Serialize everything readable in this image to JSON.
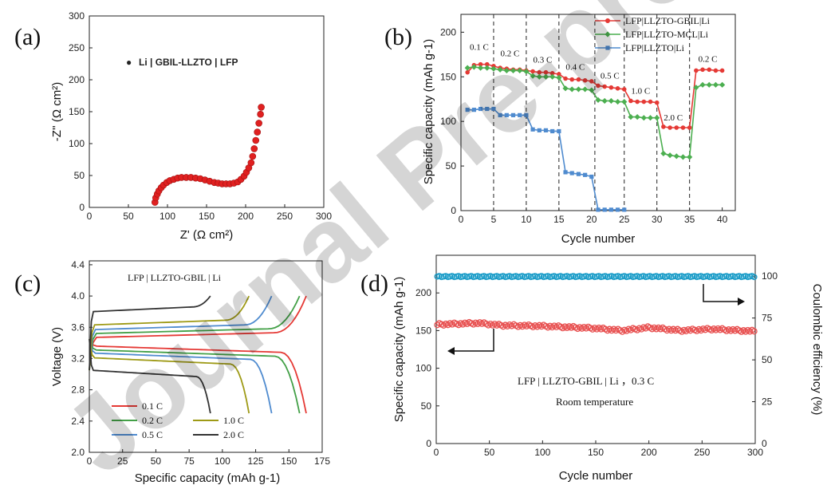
{
  "labels": {
    "a": "(a)",
    "b": "(b)",
    "c": "(c)",
    "d": "(d)"
  },
  "watermark": "Journal Pre-proof",
  "chart_data": [
    {
      "id": "a",
      "type": "scatter",
      "xlabel": "Z' (Ω cm²)",
      "ylabel": "-Z'' (Ω cm²)",
      "xlim": [
        0,
        300
      ],
      "ylim": [
        0,
        300
      ],
      "xticks": [
        "0",
        "50",
        "100",
        "150",
        "200",
        "250",
        "300"
      ],
      "yticks": [
        "0",
        "50",
        "100",
        "150",
        "200",
        "250",
        "300"
      ],
      "legend": "Li | GBIL-LLZTO | LFP",
      "color": "#e02020",
      "x": [
        84,
        85,
        87,
        89,
        92,
        95,
        99,
        103,
        108,
        113,
        118,
        124,
        130,
        136,
        142,
        148,
        154,
        160,
        165,
        170,
        175,
        180,
        185,
        190,
        194,
        198,
        201,
        204,
        207,
        209,
        211,
        213,
        215,
        217,
        219,
        220
      ],
      "y": [
        8,
        15,
        21,
        26,
        31,
        35,
        39,
        42,
        44,
        46,
        47,
        47,
        47,
        46,
        45,
        43,
        41,
        39,
        38,
        37,
        37,
        37,
        38,
        40,
        44,
        49,
        55,
        62,
        70,
        80,
        92,
        105,
        118,
        132,
        146,
        157
      ]
    },
    {
      "id": "b",
      "type": "line",
      "xlabel": "Cycle number",
      "ylabel": "Specific capacity (mAh g-1)",
      "xlim": [
        0,
        42
      ],
      "ylim": [
        0,
        220
      ],
      "xticks": [
        "0",
        "5",
        "10",
        "15",
        "20",
        "25",
        "30",
        "35",
        "40"
      ],
      "yticks": [
        "0",
        "50",
        "100",
        "150",
        "200"
      ],
      "dividers": [
        5,
        10,
        15,
        20.5,
        25,
        30,
        35
      ],
      "rate_labels": [
        {
          "x": 2.8,
          "y": 180,
          "text": "0.1 C"
        },
        {
          "x": 7.5,
          "y": 173,
          "text": "0.2 C"
        },
        {
          "x": 12.5,
          "y": 166,
          "text": "0.3 C"
        },
        {
          "x": 17.5,
          "y": 158,
          "text": "0.4 C"
        },
        {
          "x": 22.8,
          "y": 148,
          "text": "0.5 C"
        },
        {
          "x": 27.5,
          "y": 131,
          "text": "1.0 C"
        },
        {
          "x": 32.5,
          "y": 101,
          "text": "2.0 C"
        },
        {
          "x": 37.8,
          "y": 167,
          "text": "0.2 C"
        }
      ],
      "x": [
        1,
        2,
        3,
        4,
        5,
        6,
        7,
        8,
        9,
        10,
        11,
        12,
        13,
        14,
        15,
        16,
        17,
        18,
        19,
        20,
        21,
        22,
        23,
        24,
        25,
        26,
        27,
        28,
        29,
        30,
        31,
        32,
        33,
        34,
        35,
        36,
        37,
        38,
        39,
        40
      ],
      "series": [
        {
          "name": "LFP|LLZTO-GBIL|Li",
          "color": "#e53935",
          "values": [
            155,
            163,
            164,
            164,
            162,
            160,
            159,
            158,
            158,
            157,
            156,
            155,
            155,
            154,
            153,
            148,
            147,
            147,
            146,
            145,
            140,
            139,
            138,
            137,
            136,
            123,
            122,
            122,
            122,
            121,
            94,
            93,
            93,
            93,
            93,
            157,
            158,
            158,
            157,
            157
          ]
        },
        {
          "name": "LFP|LLZTO-MCL|Li",
          "color": "#4caf50",
          "values": [
            160,
            161,
            160,
            160,
            159,
            158,
            157,
            157,
            157,
            156,
            151,
            150,
            150,
            150,
            149,
            137,
            136,
            136,
            136,
            135,
            124,
            123,
            123,
            122,
            122,
            105,
            105,
            104,
            104,
            104,
            64,
            62,
            61,
            60,
            60,
            138,
            141,
            141,
            141,
            141
          ]
        },
        {
          "name": "LFP|LLZTO|Li",
          "color": "#4f8bcf",
          "values": [
            113,
            113,
            114,
            114,
            114,
            107,
            107,
            107,
            107,
            107,
            91,
            90,
            90,
            89,
            89,
            43,
            42,
            41,
            40,
            38,
            1,
            1,
            1,
            1,
            1,
            null,
            null,
            null,
            null,
            null,
            null,
            null,
            null,
            null,
            null,
            null,
            null,
            null,
            null,
            null
          ]
        }
      ]
    },
    {
      "id": "c",
      "type": "line",
      "xlabel": "Specific capacity (mAh g-1)",
      "ylabel": "Voltage (V)",
      "xlim": [
        0,
        175
      ],
      "ylim": [
        2.0,
        4.45
      ],
      "xticks": [
        "0",
        "25",
        "50",
        "75",
        "100",
        "125",
        "150",
        "175"
      ],
      "yticks": [
        "2.0",
        "2.4",
        "2.8",
        "3.2",
        "3.6",
        "4.0",
        "4.4"
      ],
      "title": "LFP | LLZTO-GBIL | Li",
      "series": [
        {
          "name": "0.1 C",
          "color": "#e53935",
          "charge_plateau": 3.47,
          "discharge_plateau": 3.36,
          "capacity": 163
        },
        {
          "name": "0.2 C",
          "color": "#43a047",
          "charge_plateau": 3.52,
          "discharge_plateau": 3.31,
          "capacity": 158
        },
        {
          "name": "0.5 C",
          "color": "#4f8bcf",
          "charge_plateau": 3.57,
          "discharge_plateau": 3.27,
          "capacity": 137
        },
        {
          "name": "1.0 C",
          "color": "#9e9a16",
          "charge_plateau": 3.63,
          "discharge_plateau": 3.21,
          "capacity": 120
        },
        {
          "name": "2.0 C",
          "color": "#333333",
          "charge_plateau": 3.8,
          "discharge_plateau": 3.05,
          "capacity": 91
        }
      ]
    },
    {
      "id": "d",
      "type": "scatter",
      "xlabel": "Cycle number",
      "ylabel": "Specific capacity (mAh g-1)",
      "ylabel2": "Coulombic efficiency (%)",
      "xlim": [
        0,
        300
      ],
      "ylim": [
        0,
        250
      ],
      "ylim2": [
        0,
        112.5
      ],
      "xticks": [
        "0",
        "50",
        "100",
        "150",
        "200",
        "250",
        "300"
      ],
      "yticks": [
        "0",
        "50",
        "100",
        "150",
        "200"
      ],
      "yticks2": [
        "0",
        "25",
        "50",
        "75",
        "100"
      ],
      "annotation": "LFP | LLZTO-GBIL | Li ，0.3 C",
      "annotation2": "Room temperature",
      "capacity_color": "#e85050",
      "efficiency_color": "#1a9cc8",
      "capacity_profile": {
        "x": [
          0,
          20,
          40,
          60,
          100,
          150,
          175,
          200,
          230,
          260,
          300
        ],
        "y": [
          158,
          159,
          160,
          157,
          156,
          153,
          150,
          154,
          150,
          152,
          149
        ]
      },
      "efficiency_value": 99.8
    }
  ]
}
